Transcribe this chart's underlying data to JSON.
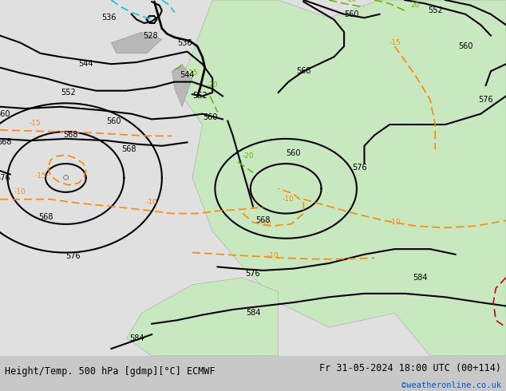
{
  "title_left": "Height/Temp. 500 hPa [gdmp][°C] ECMWF",
  "title_right": "Fr 31-05-2024 18:00 UTC (00+114)",
  "credit": "©weatheronline.co.uk",
  "credit_color": "#0055cc",
  "bg_color": "#d0d0d0",
  "land_color": "#c8e6c8",
  "sea_color": "#e8e8e8",
  "height_contour_color": "#000000",
  "temp_neg_color": "#ff8800",
  "temp_pos_color": "#cc0000",
  "temp_cyan_color": "#00cccc",
  "temp_green_color": "#66cc00",
  "figsize": [
    6.34,
    4.9
  ],
  "dpi": 100
}
